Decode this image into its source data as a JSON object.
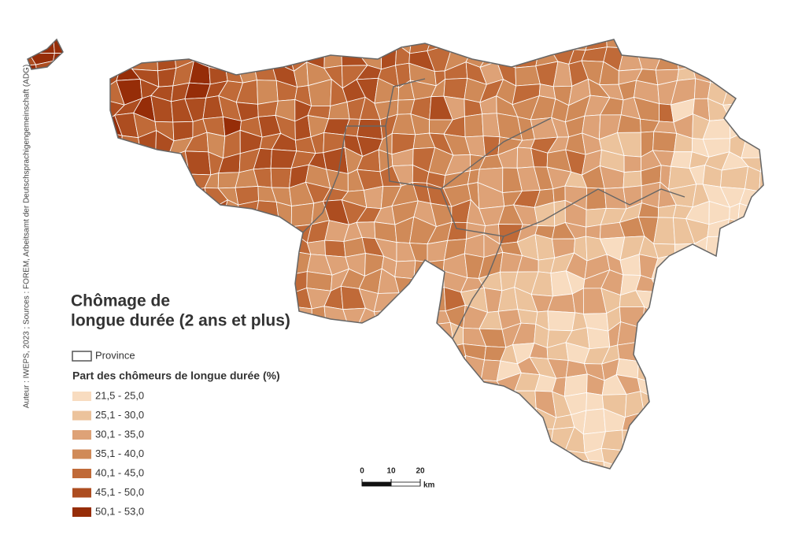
{
  "title": [
    "Chômage de",
    "longue durée (2 ans et plus)"
  ],
  "source": "Auteur : IWEPS, 2023 ; Sources : FOREM, Arbeitsamt der Deutschsprachigengemeinschaft (ADG)",
  "legend": {
    "province_label": "Province",
    "title": "Part des chômeurs de longue durée (%)",
    "classes": [
      {
        "label": "21,5 - 25,0",
        "color": "#f8dcc0"
      },
      {
        "label": "25,1 - 30,0",
        "color": "#ecc39c"
      },
      {
        "label": "30,1 - 35,0",
        "color": "#dea277"
      },
      {
        "label": "35,1 - 40,0",
        "color": "#d08a58"
      },
      {
        "label": "40,1 - 45,0",
        "color": "#c06a38"
      },
      {
        "label": "45,1 - 50,0",
        "color": "#ad4d20"
      },
      {
        "label": "50,1 - 53,0",
        "color": "#962d08"
      }
    ]
  },
  "scale_bar": {
    "ticks": [
      0,
      10,
      20
    ],
    "unit": "km"
  }
}
